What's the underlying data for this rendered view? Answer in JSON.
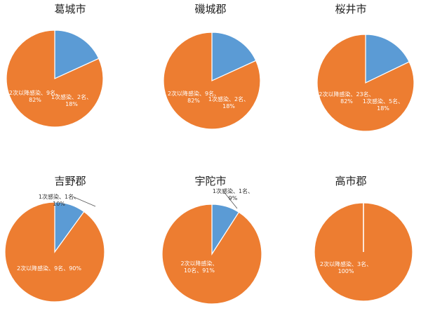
{
  "colors": {
    "primary": "#5b9bd5",
    "secondary": "#ed7d31"
  },
  "chart_data": [
    {
      "type": "pie",
      "title": "葛城市",
      "slices": [
        {
          "value": 2,
          "percent": 18,
          "label_lines": [
            "1次感染、2名、",
            "18%"
          ]
        },
        {
          "value": 9,
          "percent": 82,
          "label_lines": [
            "2次以降感染、9名、",
            "82%"
          ]
        }
      ]
    },
    {
      "type": "pie",
      "title": "磯城郡",
      "slices": [
        {
          "value": 2,
          "percent": 18,
          "label_lines": [
            "1次感染、2名、",
            "18%"
          ]
        },
        {
          "value": 9,
          "percent": 82,
          "label_lines": [
            "2次以降感染、9名、",
            "82%"
          ]
        }
      ]
    },
    {
      "type": "pie",
      "title": "桜井市",
      "slices": [
        {
          "value": 5,
          "percent": 18,
          "label_lines": [
            "1次感染、5名、",
            "18%"
          ]
        },
        {
          "value": 23,
          "percent": 82,
          "label_lines": [
            "2次以降感染、23名、",
            "82%"
          ]
        }
      ]
    },
    {
      "type": "pie",
      "title": "吉野郡",
      "slices": [
        {
          "value": 1,
          "percent": 10,
          "label_lines": [
            "1次感染、1名、",
            "10%"
          ]
        },
        {
          "value": 9,
          "percent": 90,
          "label_lines": [
            "2次以降感染、9名、90%"
          ]
        }
      ]
    },
    {
      "type": "pie",
      "title": "宇陀市",
      "slices": [
        {
          "value": 1,
          "percent": 9,
          "label_lines": [
            "1次感染、1名、",
            "9%"
          ]
        },
        {
          "value": 10,
          "percent": 91,
          "label_lines": [
            "2次以降感染、",
            "10名、91%"
          ]
        }
      ]
    },
    {
      "type": "pie",
      "title": "高市郡",
      "slices": [
        {
          "value": 0,
          "percent": 0,
          "label_lines": []
        },
        {
          "value": 3,
          "percent": 100,
          "label_lines": [
            "2次以降感染、3名、",
            "100%"
          ]
        }
      ]
    }
  ]
}
